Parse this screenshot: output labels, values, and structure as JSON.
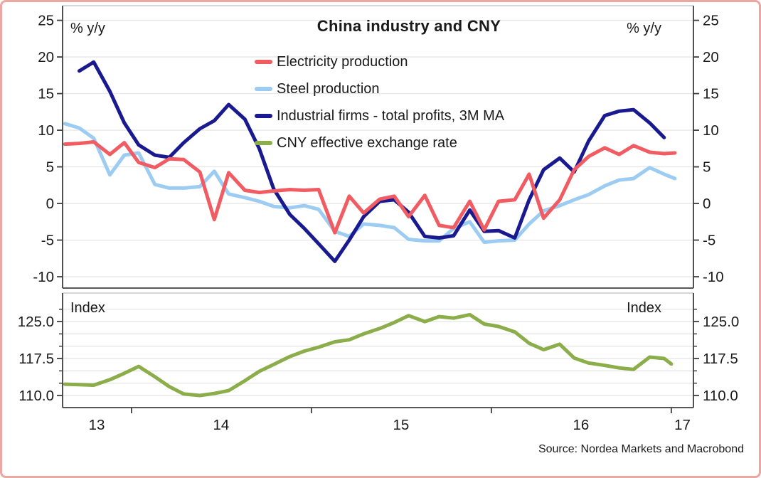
{
  "ui": {
    "frame_border_color": "#eba7a2",
    "background": "#ffffff",
    "grid_color": "#e7e7e7",
    "spine_dark": "#3f3f3f",
    "spine_light": "#c9c9c9",
    "text_color": "#1a1a1a"
  },
  "source_note": "Source: Nordea Markets and Macrobond",
  "chart_data": {
    "type": "line",
    "title": "China industry and CNY",
    "legend_position": "top-center",
    "grid": true,
    "x_axis": {
      "xlim": [
        2013.617,
        2017.123
      ],
      "boundary_ticks": [
        2014,
        2015,
        2016,
        2017
      ],
      "labels": [
        {
          "text": "13",
          "pos": 2013.807
        },
        {
          "text": "14",
          "pos": 2014.498
        },
        {
          "text": "15",
          "pos": 2015.498
        },
        {
          "text": "16",
          "pos": 2016.498
        },
        {
          "text": "17",
          "pos": 2017.062
        }
      ]
    },
    "panels": {
      "top": {
        "unit_left": "% y/y",
        "unit_right": "% y/y",
        "ylim": [
          -11.55,
          27.0
        ],
        "ticks": [
          {
            "v": 25,
            "label": "25"
          },
          {
            "v": 20,
            "label": "20"
          },
          {
            "v": 15,
            "label": "15"
          },
          {
            "v": 10,
            "label": "10"
          },
          {
            "v": 5,
            "label": "5"
          },
          {
            "v": 0,
            "label": "0"
          },
          {
            "v": -5,
            "label": "-5"
          },
          {
            "v": -10,
            "label": "-10"
          }
        ],
        "minor_ticks": []
      },
      "bottom": {
        "unit_left": "Index",
        "unit_right": "Index",
        "ylim": [
          107.55,
          130.78
        ],
        "ticks": [
          {
            "v": 125.0,
            "label": "125.0"
          },
          {
            "v": 117.5,
            "label": "117.5"
          },
          {
            "v": 110.0,
            "label": "110.0"
          }
        ],
        "minor_ticks": [
          127.5,
          122.5,
          120.0,
          115.0,
          112.5
        ]
      }
    },
    "series": [
      {
        "name": "Electricity production",
        "color": "#f05c62",
        "panel": "top",
        "points": [
          [
            2013.63,
            8.1
          ],
          [
            2013.71,
            8.2
          ],
          [
            2013.79,
            8.4
          ],
          [
            2013.88,
            6.7
          ],
          [
            2013.96,
            8.3
          ],
          [
            2014.04,
            5.6
          ],
          [
            2014.13,
            4.9
          ],
          [
            2014.21,
            6.1
          ],
          [
            2014.29,
            6.0
          ],
          [
            2014.38,
            4.3
          ],
          [
            2014.46,
            -2.2
          ],
          [
            2014.54,
            4.2
          ],
          [
            2014.63,
            1.8
          ],
          [
            2014.71,
            1.5
          ],
          [
            2014.79,
            1.7
          ],
          [
            2014.88,
            1.9
          ],
          [
            2014.96,
            1.8
          ],
          [
            2015.04,
            1.9
          ],
          [
            2015.13,
            -4.0
          ],
          [
            2015.21,
            1.0
          ],
          [
            2015.29,
            -1.3
          ],
          [
            2015.38,
            0.6
          ],
          [
            2015.46,
            1.0
          ],
          [
            2015.54,
            -1.8
          ],
          [
            2015.63,
            1.1
          ],
          [
            2015.71,
            -3.0
          ],
          [
            2015.79,
            -3.3
          ],
          [
            2015.88,
            0.3
          ],
          [
            2015.96,
            -3.6
          ],
          [
            2016.04,
            0.3
          ],
          [
            2016.13,
            0.5
          ],
          [
            2016.21,
            4.0
          ],
          [
            2016.29,
            -2.0
          ],
          [
            2016.38,
            0.5
          ],
          [
            2016.46,
            4.6
          ],
          [
            2016.54,
            6.4
          ],
          [
            2016.63,
            7.6
          ],
          [
            2016.71,
            6.7
          ],
          [
            2016.79,
            7.9
          ],
          [
            2016.88,
            7.0
          ],
          [
            2016.96,
            6.8
          ],
          [
            2017.02,
            6.9
          ]
        ]
      },
      {
        "name": "Steel production",
        "color": "#9dccf2",
        "panel": "top",
        "points": [
          [
            2013.63,
            10.9
          ],
          [
            2013.71,
            10.3
          ],
          [
            2013.79,
            8.9
          ],
          [
            2013.88,
            3.9
          ],
          [
            2013.96,
            6.6
          ],
          [
            2014.04,
            6.9
          ],
          [
            2014.13,
            2.6
          ],
          [
            2014.21,
            2.1
          ],
          [
            2014.29,
            2.1
          ],
          [
            2014.38,
            2.3
          ],
          [
            2014.46,
            4.4
          ],
          [
            2014.54,
            1.3
          ],
          [
            2014.63,
            0.8
          ],
          [
            2014.71,
            0.3
          ],
          [
            2014.79,
            -0.4
          ],
          [
            2014.88,
            -0.6
          ],
          [
            2014.96,
            -0.3
          ],
          [
            2015.04,
            -0.8
          ],
          [
            2015.13,
            -3.8
          ],
          [
            2015.21,
            -4.5
          ],
          [
            2015.29,
            -2.8
          ],
          [
            2015.38,
            -3.0
          ],
          [
            2015.46,
            -3.3
          ],
          [
            2015.54,
            -4.9
          ],
          [
            2015.63,
            -5.1
          ],
          [
            2015.71,
            -5.1
          ],
          [
            2015.79,
            -3.4
          ],
          [
            2015.88,
            -2.5
          ],
          [
            2015.96,
            -5.3
          ],
          [
            2016.04,
            -5.1
          ],
          [
            2016.13,
            -5.0
          ],
          [
            2016.21,
            -2.8
          ],
          [
            2016.29,
            -1.0
          ],
          [
            2016.38,
            -0.3
          ],
          [
            2016.46,
            0.5
          ],
          [
            2016.54,
            1.2
          ],
          [
            2016.63,
            2.4
          ],
          [
            2016.71,
            3.2
          ],
          [
            2016.79,
            3.4
          ],
          [
            2016.88,
            4.9
          ],
          [
            2016.96,
            4.0
          ],
          [
            2017.02,
            3.4
          ]
        ]
      },
      {
        "name": "Industrial firms - total profits, 3M MA",
        "color": "#191990",
        "panel": "top",
        "points": [
          [
            2013.71,
            18.1
          ],
          [
            2013.79,
            19.3
          ],
          [
            2013.88,
            15.3
          ],
          [
            2013.96,
            11.0
          ],
          [
            2014.04,
            8.0
          ],
          [
            2014.13,
            6.6
          ],
          [
            2014.21,
            6.3
          ],
          [
            2014.29,
            8.3
          ],
          [
            2014.38,
            10.2
          ],
          [
            2014.46,
            11.3
          ],
          [
            2014.54,
            13.5
          ],
          [
            2014.63,
            11.5
          ],
          [
            2014.71,
            7.5
          ],
          [
            2014.79,
            2.0
          ],
          [
            2014.88,
            -1.5
          ],
          [
            2014.96,
            -3.4
          ],
          [
            2015.04,
            -5.5
          ],
          [
            2015.13,
            -7.9
          ],
          [
            2015.21,
            -5.0
          ],
          [
            2015.29,
            -1.8
          ],
          [
            2015.38,
            0.3
          ],
          [
            2015.46,
            0.5
          ],
          [
            2015.54,
            -1.2
          ],
          [
            2015.63,
            -4.5
          ],
          [
            2015.71,
            -4.7
          ],
          [
            2015.79,
            -4.4
          ],
          [
            2015.88,
            -0.9
          ],
          [
            2015.96,
            -3.8
          ],
          [
            2016.04,
            -3.7
          ],
          [
            2016.13,
            -4.7
          ],
          [
            2016.21,
            0.5
          ],
          [
            2016.29,
            4.6
          ],
          [
            2016.38,
            6.2
          ],
          [
            2016.46,
            4.3
          ],
          [
            2016.54,
            8.5
          ],
          [
            2016.63,
            12.0
          ],
          [
            2016.71,
            12.6
          ],
          [
            2016.79,
            12.8
          ],
          [
            2016.88,
            11.0
          ],
          [
            2016.96,
            9.0
          ]
        ]
      },
      {
        "name": "CNY effective exchange rate",
        "color": "#8bad4a",
        "panel": "bottom",
        "points": [
          [
            2013.63,
            112.3
          ],
          [
            2013.71,
            112.2
          ],
          [
            2013.79,
            112.1
          ],
          [
            2013.88,
            113.2
          ],
          [
            2013.96,
            114.5
          ],
          [
            2014.04,
            115.9
          ],
          [
            2014.13,
            113.8
          ],
          [
            2014.21,
            111.8
          ],
          [
            2014.29,
            110.3
          ],
          [
            2014.38,
            110.0
          ],
          [
            2014.46,
            110.4
          ],
          [
            2014.54,
            111.0
          ],
          [
            2014.63,
            113.0
          ],
          [
            2014.71,
            114.9
          ],
          [
            2014.79,
            116.3
          ],
          [
            2014.88,
            117.9
          ],
          [
            2014.96,
            119.0
          ],
          [
            2015.04,
            119.8
          ],
          [
            2015.13,
            120.9
          ],
          [
            2015.21,
            121.3
          ],
          [
            2015.29,
            122.5
          ],
          [
            2015.38,
            123.6
          ],
          [
            2015.46,
            124.8
          ],
          [
            2015.54,
            126.2
          ],
          [
            2015.63,
            125.0
          ],
          [
            2015.71,
            126.0
          ],
          [
            2015.79,
            125.7
          ],
          [
            2015.88,
            126.4
          ],
          [
            2015.96,
            124.5
          ],
          [
            2016.04,
            124.0
          ],
          [
            2016.13,
            122.9
          ],
          [
            2016.21,
            120.6
          ],
          [
            2016.29,
            119.3
          ],
          [
            2016.38,
            120.4
          ],
          [
            2016.46,
            117.6
          ],
          [
            2016.54,
            116.6
          ],
          [
            2016.63,
            116.1
          ],
          [
            2016.71,
            115.6
          ],
          [
            2016.79,
            115.3
          ],
          [
            2016.88,
            117.8
          ],
          [
            2016.96,
            117.5
          ],
          [
            2017.0,
            116.4
          ]
        ]
      }
    ]
  }
}
